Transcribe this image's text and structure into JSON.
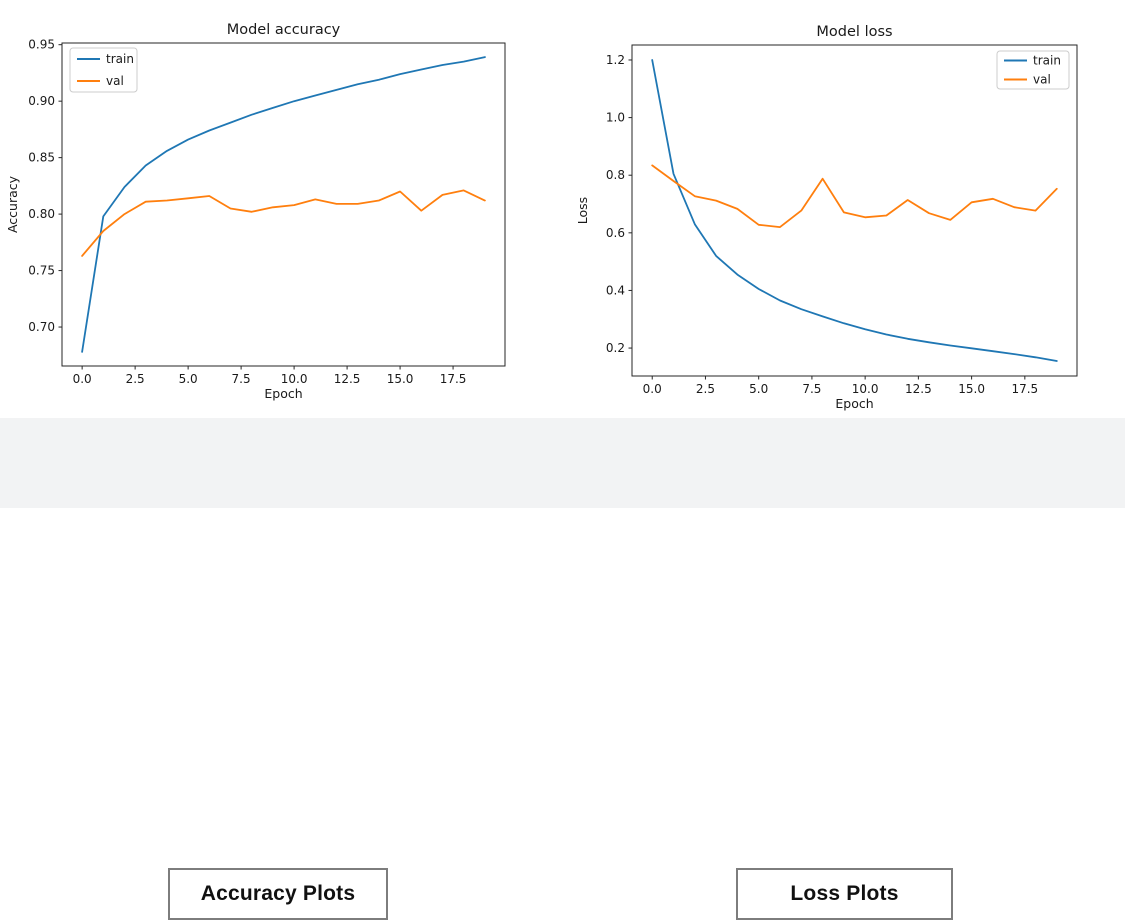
{
  "colors": {
    "train": "#1f77b4",
    "val": "#ff7f0e",
    "axis": "#262626",
    "band_background": "#f2f3f4",
    "caption_border": "#7d7d7d"
  },
  "captions": {
    "accuracy": "Accuracy Plots",
    "loss": "Loss Plots"
  },
  "chart_data": [
    {
      "type": "line",
      "title": "Model accuracy",
      "xlabel": "Epoch",
      "ylabel": "Accuracy",
      "x": [
        0,
        1,
        2,
        3,
        4,
        5,
        6,
        7,
        8,
        9,
        10,
        11,
        12,
        13,
        14,
        15,
        16,
        17,
        18,
        19
      ],
      "series": [
        {
          "name": "train",
          "color": "#1f77b4",
          "values": [
            0.678,
            0.798,
            0.824,
            0.843,
            0.856,
            0.866,
            0.874,
            0.881,
            0.888,
            0.894,
            0.9,
            0.905,
            0.91,
            0.915,
            0.919,
            0.924,
            0.928,
            0.932,
            0.935,
            0.939
          ]
        },
        {
          "name": "val",
          "color": "#ff7f0e",
          "values": [
            0.763,
            0.785,
            0.8,
            0.811,
            0.812,
            0.814,
            0.816,
            0.805,
            0.802,
            0.806,
            0.808,
            0.813,
            0.809,
            0.809,
            0.812,
            0.82,
            0.803,
            0.817,
            0.821,
            0.812
          ]
        }
      ],
      "xlim": [
        -0.95,
        19.95
      ],
      "ylim": [
        0.6655,
        0.9515
      ],
      "xtick_vals": [
        0,
        2.5,
        5,
        7.5,
        10,
        12.5,
        15,
        17.5
      ],
      "xtick_labels": [
        "0.0",
        "2.5",
        "5.0",
        "7.5",
        "10.0",
        "12.5",
        "15.0",
        "17.5"
      ],
      "ytick_vals": [
        0.7,
        0.75,
        0.8,
        0.85,
        0.9,
        0.95
      ],
      "ytick_labels": [
        "0.70",
        "0.75",
        "0.80",
        "0.85",
        "0.90",
        "0.95"
      ],
      "grid": false,
      "legend": {
        "position": "top-left",
        "entries": [
          "train",
          "val"
        ]
      }
    },
    {
      "type": "line",
      "title": "Model loss",
      "xlabel": "Epoch",
      "ylabel": "Loss",
      "x": [
        0,
        1,
        2,
        3,
        4,
        5,
        6,
        7,
        8,
        9,
        10,
        11,
        12,
        13,
        14,
        15,
        16,
        17,
        18,
        19
      ],
      "series": [
        {
          "name": "train",
          "color": "#1f77b4",
          "values": [
            1.2,
            0.805,
            0.63,
            0.52,
            0.455,
            0.405,
            0.365,
            0.335,
            0.31,
            0.286,
            0.265,
            0.247,
            0.232,
            0.22,
            0.209,
            0.199,
            0.189,
            0.179,
            0.168,
            0.155
          ]
        },
        {
          "name": "val",
          "color": "#ff7f0e",
          "values": [
            0.834,
            0.78,
            0.727,
            0.712,
            0.683,
            0.628,
            0.62,
            0.677,
            0.788,
            0.671,
            0.654,
            0.66,
            0.714,
            0.668,
            0.645,
            0.706,
            0.718,
            0.689,
            0.677,
            0.753
          ]
        }
      ],
      "xlim": [
        -0.95,
        19.95
      ],
      "ylim": [
        0.103,
        1.252
      ],
      "xtick_vals": [
        0,
        2.5,
        5,
        7.5,
        10,
        12.5,
        15,
        17.5
      ],
      "xtick_labels": [
        "0.0",
        "2.5",
        "5.0",
        "7.5",
        "10.0",
        "12.5",
        "15.0",
        "17.5"
      ],
      "ytick_vals": [
        0.2,
        0.4,
        0.6,
        0.8,
        1.0,
        1.2
      ],
      "ytick_labels": [
        "0.2",
        "0.4",
        "0.6",
        "0.8",
        "1.0",
        "1.2"
      ],
      "grid": false,
      "legend": {
        "position": "top-right",
        "entries": [
          "train",
          "val"
        ]
      }
    }
  ]
}
